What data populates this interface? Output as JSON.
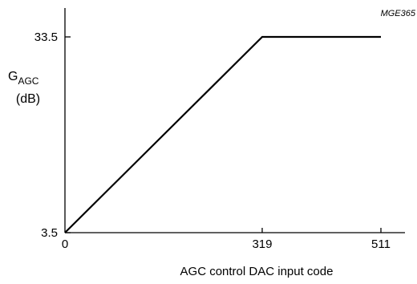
{
  "figure_ref": "MGE365",
  "chart_data": {
    "type": "line",
    "title": "",
    "xlabel": "AGC control DAC input code",
    "ylabel": {
      "main": "G",
      "subscript": "AGC",
      "unit": "(dB)"
    },
    "x_ticks": [
      "0",
      "319",
      "511"
    ],
    "y_ticks": [
      "3.5",
      "33.5"
    ],
    "xlim": [
      0,
      511
    ],
    "ylim": [
      3.5,
      33.5
    ],
    "grid": false,
    "series": [
      {
        "x": [
          0,
          319,
          511
        ],
        "y": [
          3.5,
          33.5,
          33.5
        ]
      }
    ]
  }
}
